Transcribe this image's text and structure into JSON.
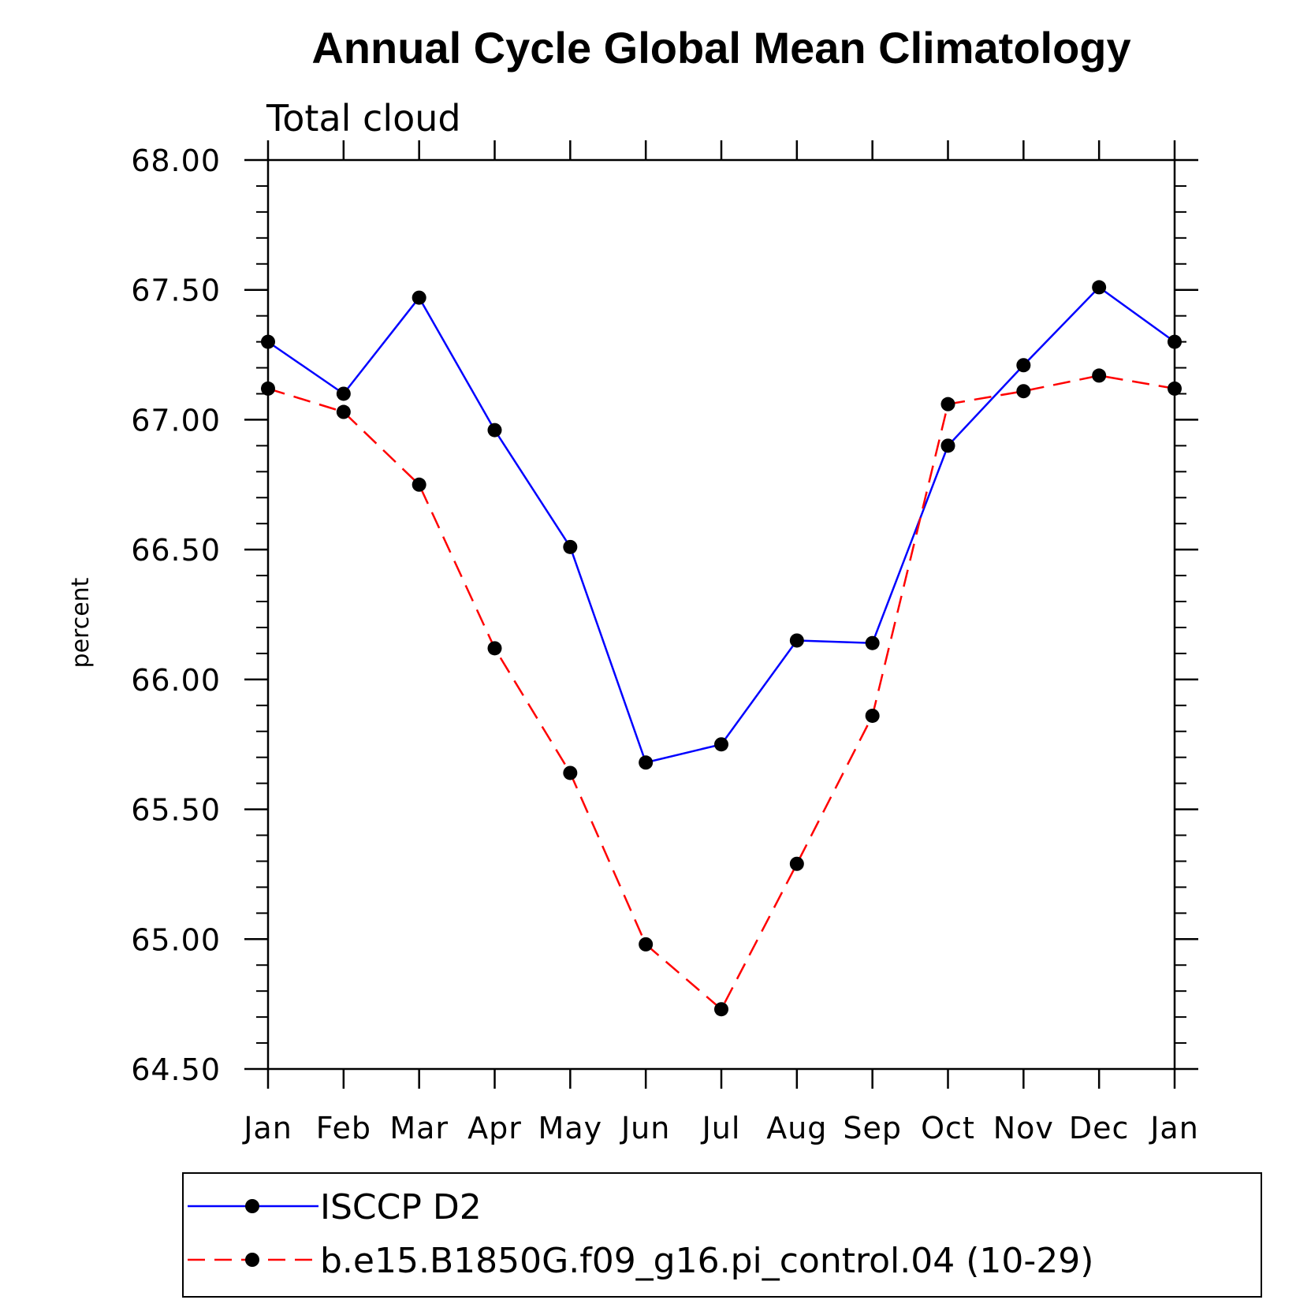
{
  "chart_data": {
    "type": "line",
    "title": "Annual Cycle Global Mean Climatology",
    "subtitle": "Total cloud",
    "xlabel": "",
    "ylabel": "percent",
    "categories": [
      "Jan",
      "Feb",
      "Mar",
      "Apr",
      "May",
      "Jun",
      "Jul",
      "Aug",
      "Sep",
      "Oct",
      "Nov",
      "Dec",
      "Jan"
    ],
    "ylim": [
      64.5,
      68.0
    ],
    "yticks": [
      "64.50",
      "65.00",
      "65.50",
      "66.00",
      "66.50",
      "67.00",
      "67.50",
      "68.00"
    ],
    "grid": false,
    "legend_position": "bottom",
    "series": [
      {
        "name": "ISCCP D2",
        "color": "#0000ff",
        "dash": "solid",
        "values": [
          67.3,
          67.1,
          67.47,
          66.96,
          66.51,
          65.68,
          65.75,
          66.15,
          66.14,
          66.9,
          67.21,
          67.51,
          67.3
        ]
      },
      {
        "name": "b.e15.B1850G.f09_g16.pi_control.04 (10-29)",
        "color": "#ff0000",
        "dash": "dashed",
        "values": [
          67.12,
          67.03,
          66.75,
          66.12,
          65.64,
          64.98,
          64.73,
          65.29,
          65.86,
          67.06,
          67.11,
          67.17,
          67.12
        ]
      }
    ]
  }
}
